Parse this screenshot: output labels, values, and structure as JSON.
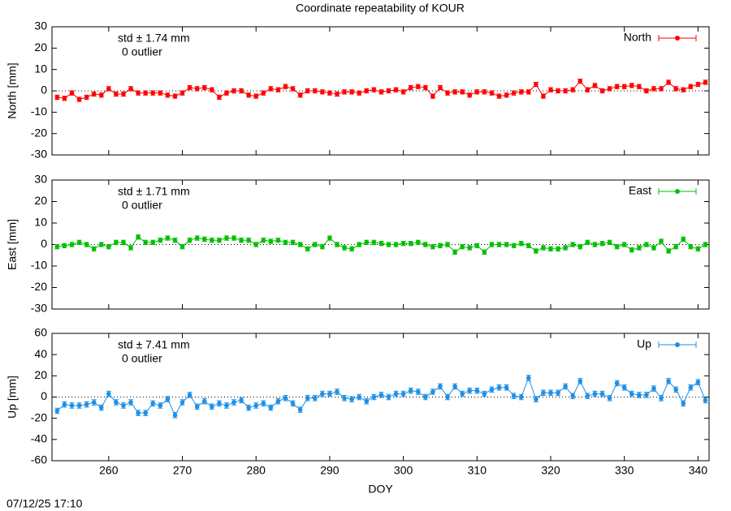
{
  "title": "Coordinate repeatability of KOUR",
  "timestamp": "07/12/25 17:10",
  "chart_data": [
    {
      "type": "line",
      "ylabel": "North [mm]",
      "std_label": "std ± 1.74 mm",
      "outlier_label": "0 outlier",
      "xlim": [
        252.3,
        341.5
      ],
      "ylim": [
        -30,
        30
      ],
      "yticks": [
        -30,
        -20,
        -10,
        0,
        10,
        20,
        30
      ],
      "error": 1,
      "x": [
        253,
        254,
        255,
        256,
        257,
        258,
        259,
        260,
        261,
        262,
        263,
        264,
        265,
        266,
        267,
        268,
        269,
        270,
        271,
        272,
        273,
        274,
        275,
        276,
        277,
        278,
        279,
        280,
        281,
        282,
        283,
        284,
        285,
        286,
        287,
        288,
        289,
        290,
        291,
        292,
        293,
        294,
        295,
        296,
        297,
        298,
        299,
        300,
        301,
        302,
        303,
        304,
        305,
        306,
        307,
        308,
        309,
        310,
        311,
        312,
        313,
        314,
        315,
        316,
        317,
        318,
        319,
        320,
        321,
        322,
        323,
        324,
        325,
        326,
        327,
        328,
        329,
        330,
        331,
        332,
        333,
        334,
        335,
        336,
        337,
        338,
        339,
        340,
        341
      ],
      "series": [
        {
          "name": "North",
          "color": "#ff0000",
          "values": [
            -3,
            -3.5,
            -1,
            -4,
            -3,
            -1.5,
            -2,
            1,
            -1.5,
            -1.5,
            1,
            -1,
            -1,
            -1,
            -1,
            -2,
            -2.5,
            -1,
            1.5,
            1,
            1.5,
            0.5,
            -3,
            -1,
            0,
            0,
            -2,
            -2.5,
            -1,
            1,
            0.5,
            2,
            1,
            -2,
            0,
            0,
            -0.5,
            -1,
            -1.5,
            -0.5,
            -0.5,
            -1,
            0,
            0.5,
            -0.5,
            0,
            0.5,
            -0.5,
            1.5,
            2,
            1.5,
            -2.5,
            1.5,
            -1,
            -0.5,
            -0.5,
            -2,
            -0.5,
            -0.5,
            -1,
            -2.5,
            -2,
            -1,
            -0.5,
            -0.5,
            3,
            -2.5,
            0.5,
            0,
            0,
            0.5,
            4.5,
            0.5,
            2.5,
            0,
            1,
            2,
            2,
            2.5,
            2,
            0,
            1,
            1,
            4,
            1,
            0.5,
            2,
            3,
            4
          ]
        }
      ]
    },
    {
      "type": "line",
      "ylabel": "East [mm]",
      "std_label": "std ± 1.71 mm",
      "outlier_label": "0 outlier",
      "xlim": [
        252.3,
        341.5
      ],
      "ylim": [
        -30,
        30
      ],
      "yticks": [
        -30,
        -20,
        -10,
        0,
        10,
        20,
        30
      ],
      "error": 1,
      "x": [
        253,
        254,
        255,
        256,
        257,
        258,
        259,
        260,
        261,
        262,
        263,
        264,
        265,
        266,
        267,
        268,
        269,
        270,
        271,
        272,
        273,
        274,
        275,
        276,
        277,
        278,
        279,
        280,
        281,
        282,
        283,
        284,
        285,
        286,
        287,
        288,
        289,
        290,
        291,
        292,
        293,
        294,
        295,
        296,
        297,
        298,
        299,
        300,
        301,
        302,
        303,
        304,
        305,
        306,
        307,
        308,
        309,
        310,
        311,
        312,
        313,
        314,
        315,
        316,
        317,
        318,
        319,
        320,
        321,
        322,
        323,
        324,
        325,
        326,
        327,
        328,
        329,
        330,
        331,
        332,
        333,
        334,
        335,
        336,
        337,
        338,
        339,
        340,
        341
      ],
      "series": [
        {
          "name": "East",
          "color": "#00c000",
          "values": [
            -1,
            -0.5,
            0,
            1,
            0,
            -2,
            0,
            -1,
            1,
            1,
            -1.5,
            3.5,
            1,
            1,
            2,
            3,
            2,
            -1,
            2,
            3,
            2.5,
            2,
            2,
            3,
            3,
            2,
            2,
            0,
            2,
            1.5,
            2,
            1,
            1,
            0,
            -2,
            0,
            -1,
            3,
            0,
            -1.5,
            -2,
            0,
            1,
            1,
            0.5,
            0,
            0,
            0.5,
            0.5,
            1,
            0,
            -1,
            -0.5,
            0,
            -3.5,
            -1,
            -1.5,
            -0.5,
            -3.5,
            0,
            0,
            0,
            -0.5,
            0.5,
            -0.5,
            -3,
            -1.5,
            -2,
            -2,
            -1.5,
            0,
            -1,
            1,
            0,
            0.5,
            1,
            -1,
            0,
            -2.5,
            -1.5,
            0,
            -1.5,
            1.5,
            -3,
            -1,
            2.5,
            -1,
            -2,
            0
          ]
        }
      ]
    },
    {
      "type": "line",
      "ylabel": "Up [mm]",
      "std_label": "std ± 7.41 mm",
      "outlier_label": "0 outlier",
      "xlabel": "DOY",
      "xlim": [
        252.3,
        341.5
      ],
      "xticks": [
        260,
        270,
        280,
        290,
        300,
        310,
        320,
        330,
        340
      ],
      "ylim": [
        -60,
        60
      ],
      "yticks": [
        -60,
        -40,
        -20,
        0,
        20,
        40,
        60
      ],
      "error": 2.5,
      "x": [
        253,
        254,
        255,
        256,
        257,
        258,
        259,
        260,
        261,
        262,
        263,
        264,
        265,
        266,
        267,
        268,
        269,
        270,
        271,
        272,
        273,
        274,
        275,
        276,
        277,
        278,
        279,
        280,
        281,
        282,
        283,
        284,
        285,
        286,
        287,
        288,
        289,
        290,
        291,
        292,
        293,
        294,
        295,
        296,
        297,
        298,
        299,
        300,
        301,
        302,
        303,
        304,
        305,
        306,
        307,
        308,
        309,
        310,
        311,
        312,
        313,
        314,
        315,
        316,
        317,
        318,
        319,
        320,
        321,
        322,
        323,
        324,
        325,
        326,
        327,
        328,
        329,
        330,
        331,
        332,
        333,
        334,
        335,
        336,
        337,
        338,
        339,
        340,
        341
      ],
      "series": [
        {
          "name": "Up",
          "color": "#1e8fe6",
          "values": [
            -13,
            -7,
            -8,
            -8,
            -7,
            -5,
            -10,
            3,
            -5,
            -8,
            -5,
            -15,
            -15,
            -6,
            -8,
            -2,
            -17,
            -5,
            2,
            -9,
            -4,
            -9,
            -6,
            -8,
            -5,
            -3,
            -10,
            -8,
            -6,
            -10,
            -4,
            -1,
            -6,
            -12,
            -1,
            -1,
            3,
            3,
            5,
            -1,
            -2,
            0,
            -4,
            0,
            2,
            0,
            3,
            3,
            6,
            5,
            0,
            5,
            10,
            0,
            10,
            3,
            6,
            6,
            3,
            7,
            9,
            9,
            1,
            0,
            18,
            -2,
            4,
            4,
            4,
            10,
            1,
            15,
            1,
            3,
            3,
            -1,
            13,
            9,
            3,
            2,
            2,
            8,
            -1,
            15,
            7,
            -6,
            9,
            14,
            -3
          ]
        }
      ]
    }
  ]
}
